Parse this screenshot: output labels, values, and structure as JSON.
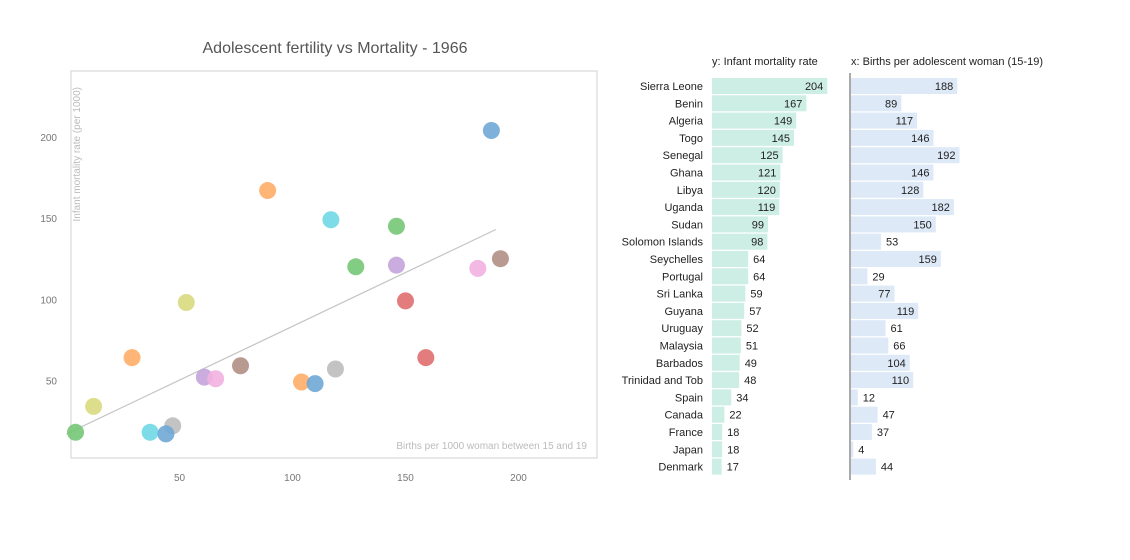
{
  "chart_data": [
    {
      "type": "scatter",
      "title": "Adolescent fertility vs Mortality - 1966",
      "xlabel": "Births per 1000 woman between 15 and 19",
      "ylabel": "Infant mortality rate (per 1000)",
      "xlim": [
        0,
        235
      ],
      "ylim": [
        0,
        240
      ],
      "xticks": [
        50,
        100,
        150,
        200
      ],
      "yticks": [
        50,
        100,
        150,
        200
      ],
      "grid": false,
      "trendline": {
        "x": [
          0,
          190
        ],
        "y": [
          17,
          143
        ],
        "color": "#c4c4c4"
      },
      "points": [
        {
          "x": 188,
          "y": 204,
          "color": "#6fa8d6"
        },
        {
          "x": 89,
          "y": 167,
          "color": "#ffad66"
        },
        {
          "x": 117,
          "y": 149,
          "color": "#6fd8e4"
        },
        {
          "x": 146,
          "y": 145,
          "color": "#76c776"
        },
        {
          "x": 192,
          "y": 125,
          "color": "#b18f85"
        },
        {
          "x": 146,
          "y": 121,
          "color": "#c4a4da"
        },
        {
          "x": 128,
          "y": 120,
          "color": "#76c776"
        },
        {
          "x": 182,
          "y": 119,
          "color": "#f2b0e0"
        },
        {
          "x": 150,
          "y": 99,
          "color": "#e06f6f"
        },
        {
          "x": 53,
          "y": 98,
          "color": "#d8da7e"
        },
        {
          "x": 29,
          "y": 64,
          "color": "#ffad66"
        },
        {
          "x": 159,
          "y": 64,
          "color": "#e06f6f"
        },
        {
          "x": 77,
          "y": 59,
          "color": "#b18f85"
        },
        {
          "x": 119,
          "y": 57,
          "color": "#bdbdbd"
        },
        {
          "x": 61,
          "y": 52,
          "color": "#c4a4da"
        },
        {
          "x": 66,
          "y": 51,
          "color": "#f2b0e0"
        },
        {
          "x": 104,
          "y": 49,
          "color": "#ffad66"
        },
        {
          "x": 110,
          "y": 48,
          "color": "#6fa8d6"
        },
        {
          "x": 12,
          "y": 34,
          "color": "#d8da7e"
        },
        {
          "x": 47,
          "y": 22,
          "color": "#bdbdbd"
        },
        {
          "x": 37,
          "y": 18,
          "color": "#6fd8e4"
        },
        {
          "x": 4,
          "y": 18,
          "color": "#76c776"
        },
        {
          "x": 44,
          "y": 17,
          "color": "#6fa8d6"
        }
      ]
    },
    {
      "type": "bar",
      "orientation": "horizontal",
      "categories": [
        "Sierra Leone",
        "Benin",
        "Algeria",
        "Togo",
        "Senegal",
        "Ghana",
        "Libya",
        "Uganda",
        "Sudan",
        "Solomon Islands",
        "Seychelles",
        "Portugal",
        "Sri Lanka",
        "Guyana",
        "Uruguay",
        "Malaysia",
        "Barbados",
        "Trinidad and Tob",
        "Spain",
        "Canada",
        "France",
        "Japan",
        "Denmark"
      ],
      "series": [
        {
          "name": "y: Infant mortality rate",
          "values": [
            204,
            167,
            149,
            145,
            125,
            121,
            120,
            119,
            99,
            98,
            64,
            64,
            59,
            57,
            52,
            51,
            49,
            48,
            34,
            22,
            18,
            18,
            17
          ],
          "color": "#cdeee4",
          "max": 230
        },
        {
          "name": "x: Births per adolescent woman (15-19)",
          "values": [
            188,
            89,
            117,
            146,
            192,
            146,
            128,
            182,
            150,
            53,
            159,
            29,
            77,
            119,
            61,
            66,
            104,
            110,
            12,
            47,
            37,
            4,
            44
          ],
          "color": "#dde9f7",
          "max": 230
        }
      ]
    }
  ]
}
